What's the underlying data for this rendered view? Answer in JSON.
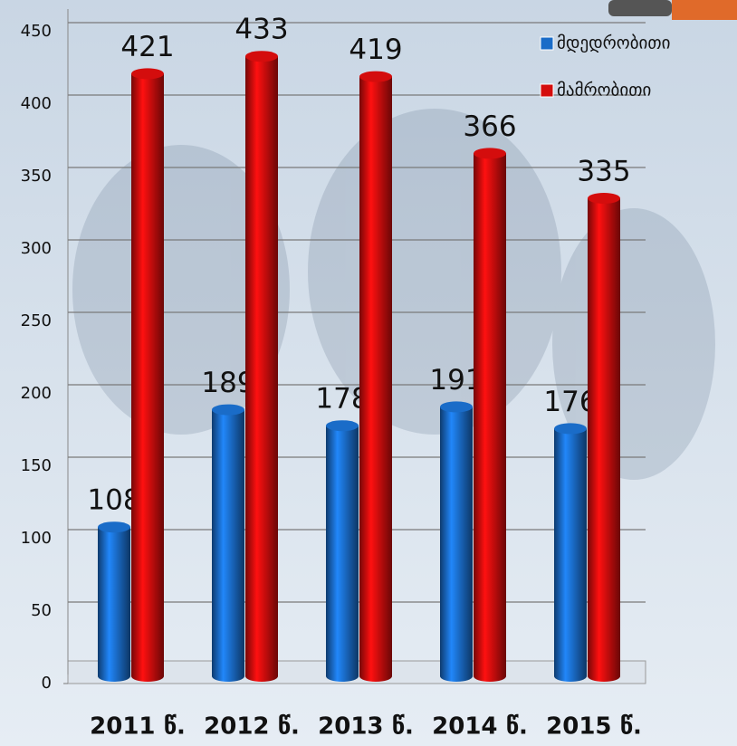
{
  "chart_data": {
    "type": "bar",
    "categories": [
      "2011 წ.",
      "2012 წ.",
      "2013 წ.",
      "2014 წ.",
      "2015 წ."
    ],
    "series": [
      {
        "name": "მდედრობითი",
        "color": "#1a6cc8",
        "values": [
          108,
          189,
          178,
          191,
          176
        ]
      },
      {
        "name": "მამრობითი",
        "color": "#d40d0d",
        "values": [
          421,
          433,
          419,
          366,
          335
        ]
      }
    ],
    "ylim": [
      0,
      450
    ],
    "yticks": [
      0,
      50,
      100,
      150,
      200,
      250,
      300,
      350,
      400,
      450
    ],
    "grid": true
  }
}
